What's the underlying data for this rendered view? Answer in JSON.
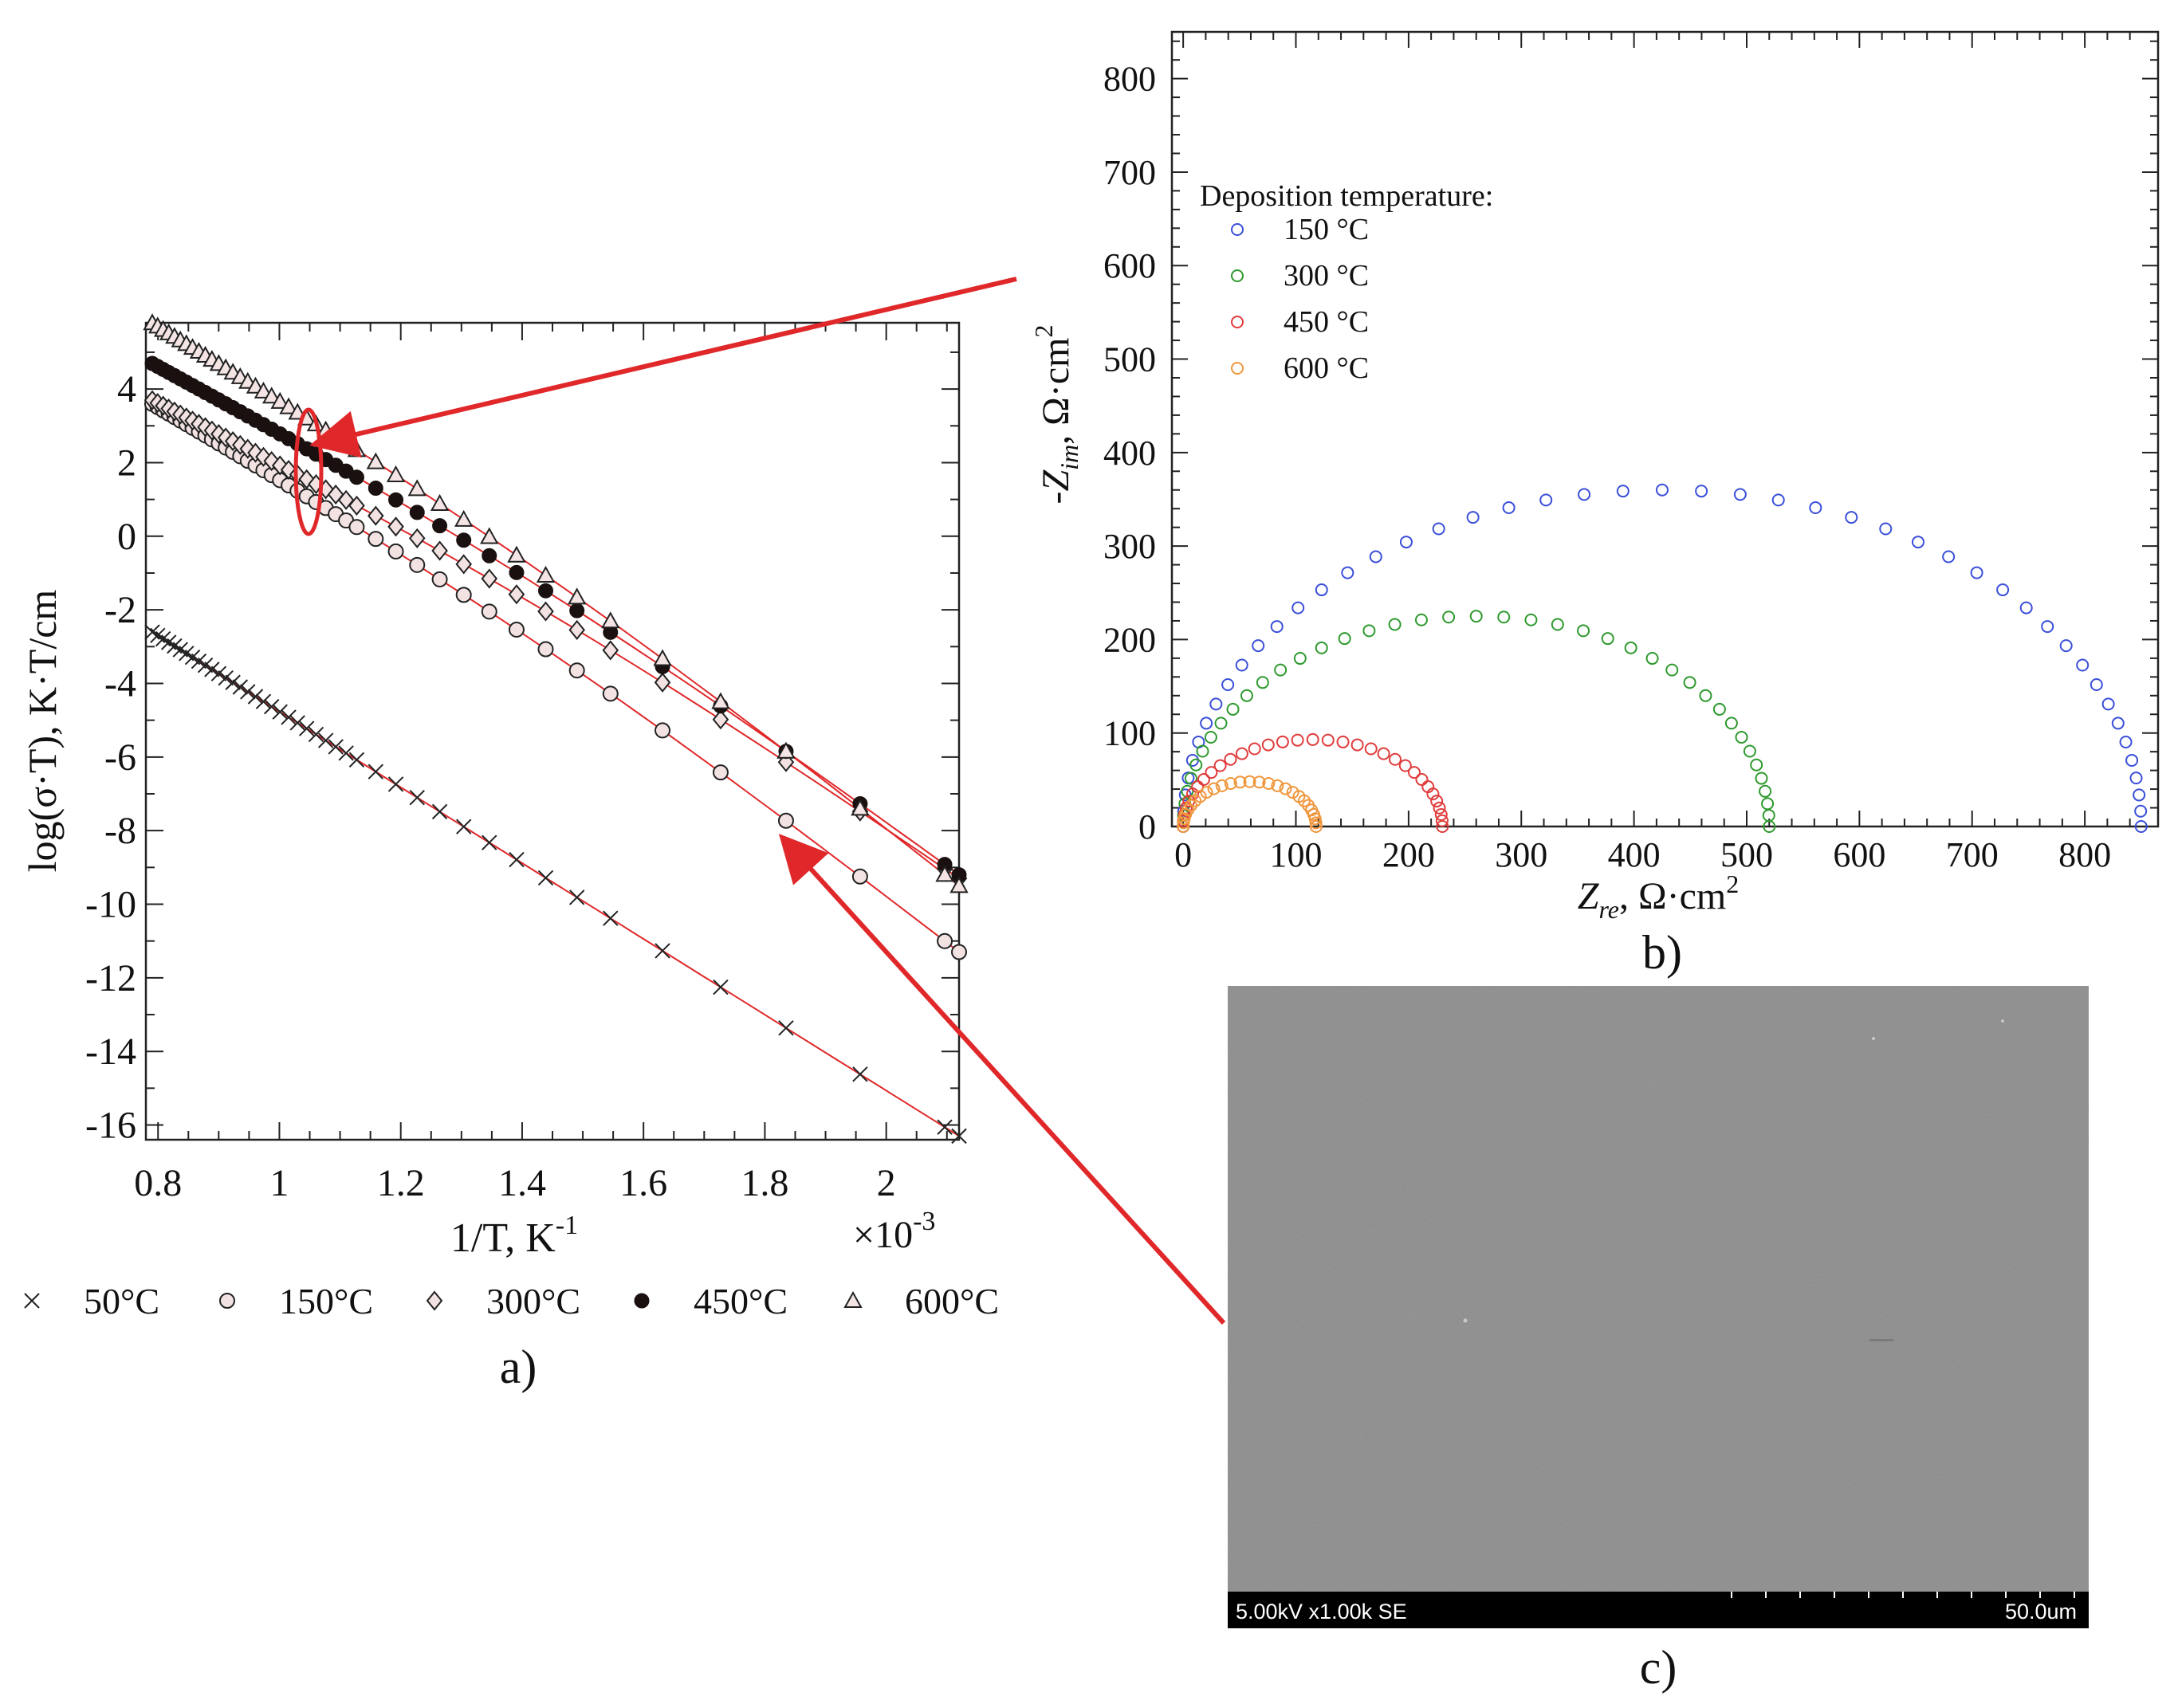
{
  "figure": {
    "label_a": "a)",
    "label_b": "b)",
    "label_c": "c)",
    "fit_line_color": "#e0282a",
    "arrow_color": "#e0282a"
  },
  "chart_data": [
    {
      "type": "scatter",
      "id": "a",
      "title": "",
      "xlabel": "1/T, K",
      "xlabel_sup": "-1",
      "x_multiplier_base": "×10",
      "x_multiplier_sup": "-3",
      "ylabel": "log(σ·T), K·T/cm",
      "xlim": [
        0.78,
        2.12
      ],
      "ylim": [
        -16.4,
        5.8
      ],
      "x_ticks": [
        0.8,
        1,
        1.2,
        1.4,
        1.6,
        1.8,
        2
      ],
      "x_tick_labels": [
        "0.8",
        "1",
        "1.2",
        "1.4",
        "1.6",
        "1.8",
        "2"
      ],
      "y_ticks": [
        4,
        2,
        0,
        -2,
        -4,
        -6,
        -8,
        -10,
        -12,
        -14,
        -16
      ],
      "y_tick_labels": [
        "4",
        "2",
        "0",
        "-2",
        "-4",
        "-6",
        "-8",
        "-10",
        "-12",
        "-14",
        "-16"
      ],
      "grid": false,
      "legend_position": "bottom",
      "series": [
        {
          "name": "50°C",
          "marker": "x",
          "x_start": 0.79,
          "x_end": 2.12,
          "y_start": -2.6,
          "y_end": -16.3
        },
        {
          "name": "150°C",
          "marker": "o",
          "x_start": 0.79,
          "x_end": 2.12,
          "y_start": 3.6,
          "y_end": -11.3
        },
        {
          "name": "300°C",
          "marker": "diamond",
          "x_start": 0.79,
          "x_end": 2.12,
          "y_start": 3.7,
          "y_end": -9.3
        },
        {
          "name": "450°C",
          "marker": "dot",
          "x_start": 0.79,
          "x_end": 2.12,
          "y_start": 4.7,
          "y_end": -9.2
        },
        {
          "name": "600°C",
          "marker": "triangle",
          "x_start": 0.79,
          "x_end": 2.12,
          "y_start": 5.8,
          "y_end": -9.5
        }
      ]
    },
    {
      "type": "scatter",
      "id": "b",
      "title": "",
      "xlabel": "Z",
      "xlabel_sub": "re",
      "xlabel_unit": ", Ω·cm",
      "xlabel_sup": "2",
      "ylabel": "-Z",
      "ylabel_sub": "im",
      "ylabel_unit": ", Ω·cm",
      "ylabel_sup": "2",
      "xlim": [
        -10,
        865
      ],
      "ylim": [
        0,
        850
      ],
      "x_ticks": [
        0,
        100,
        200,
        300,
        400,
        500,
        600,
        700,
        800
      ],
      "x_tick_labels": [
        "0",
        "100",
        "200",
        "300",
        "400",
        "500",
        "600",
        "700",
        "800"
      ],
      "y_ticks": [
        0,
        100,
        200,
        300,
        400,
        500,
        600,
        700,
        800
      ],
      "y_tick_labels": [
        "0",
        "100",
        "200",
        "300",
        "400",
        "500",
        "600",
        "700",
        "800"
      ],
      "grid": false,
      "legend_title": "Deposition temperature:",
      "legend_position": "top-left",
      "series": [
        {
          "name": "150 °C",
          "color": "#3a4fd8",
          "r_start": 0,
          "r_end": 850,
          "peak": 360,
          "points": 46
        },
        {
          "name": "300 °C",
          "color": "#2e9a2e",
          "r_start": 0,
          "r_end": 520,
          "peak": 225,
          "points": 40
        },
        {
          "name": "450 °C",
          "color": "#e03c3c",
          "r_start": 0,
          "r_end": 230,
          "peak": 93,
          "points": 32
        },
        {
          "name": "600 °C",
          "color": "#f0963c",
          "r_start": 0,
          "r_end": 118,
          "peak": 48,
          "points": 26
        }
      ]
    }
  ],
  "sem": {
    "info_left": "5.00kV x1.00k SE",
    "scale_label": "50.0um"
  }
}
